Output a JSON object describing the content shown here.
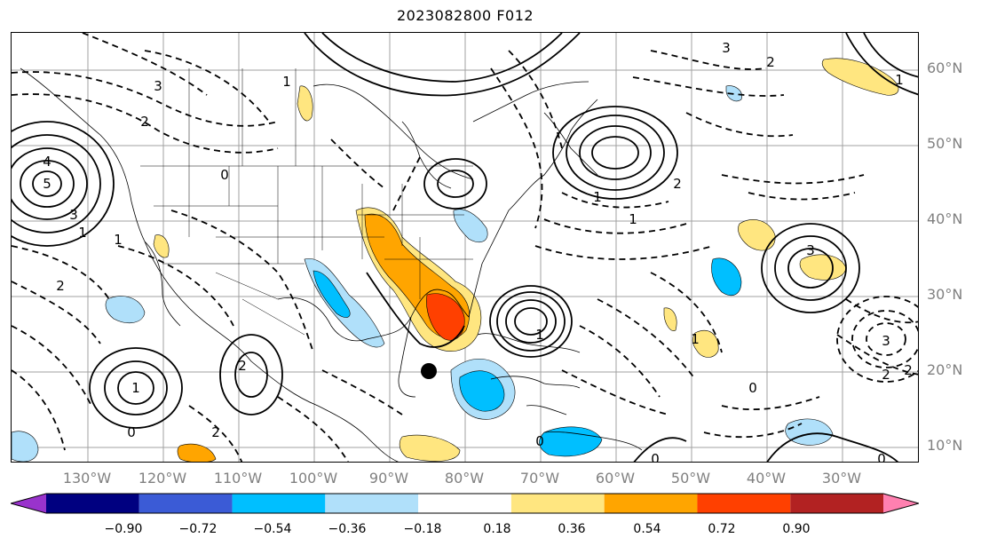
{
  "title": "2023082800 F012",
  "lat_labels": [
    "60°N",
    "50°N",
    "40°N",
    "30°N",
    "20°N",
    "10°N"
  ],
  "lon_labels": [
    "130°W",
    "120°W",
    "110°W",
    "100°W",
    "90°W",
    "80°W",
    "70°W",
    "60°W",
    "50°W",
    "40°W",
    "30°W"
  ],
  "colorbar": {
    "ticks": [
      "−0.90",
      "−0.72",
      "−0.54",
      "−0.36",
      "−0.18",
      "0.18",
      "0.36",
      "0.54",
      "0.72",
      "0.90"
    ],
    "colors": [
      "#9933cc",
      "#000080",
      "#3b5bd6",
      "#00bfff",
      "#b0e0fa",
      "#ffffff",
      "#ffe680",
      "#ffa500",
      "#ff4000",
      "#b22222",
      "#ff80b0"
    ]
  },
  "contour_labels": [
    "3",
    "2",
    "1",
    "4",
    "5",
    "3",
    "2",
    "1",
    "0",
    "2",
    "1",
    "1",
    "1",
    "2",
    "3",
    "3",
    "1",
    "2",
    "0",
    "0",
    "1",
    "2",
    "1",
    "0",
    "2",
    "1",
    "3",
    "2",
    "0",
    "0"
  ]
}
